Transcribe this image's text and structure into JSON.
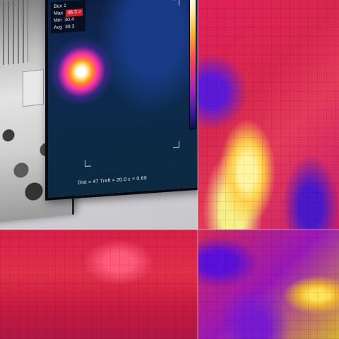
{
  "device_screen": {
    "box_label": "Box 1",
    "max_label": "Max",
    "max_value": "38.3 >",
    "min_label": "Min",
    "min_value": "30.4",
    "avg_label": "Avg",
    "avg_value": "38.3",
    "status_line": "Dist = 47  Trefl = 20.0  ε = 0.69",
    "palette": "ironbow"
  },
  "icons": {
    "palette_bar": "color-palette-bar-icon",
    "corner_marks": "roi-corner-bracket-icon"
  },
  "colors": {
    "max_highlight": "#d4202a",
    "hot": "#ffe27a",
    "warm": "#ff2fb0",
    "cool": "#0f2a55"
  }
}
